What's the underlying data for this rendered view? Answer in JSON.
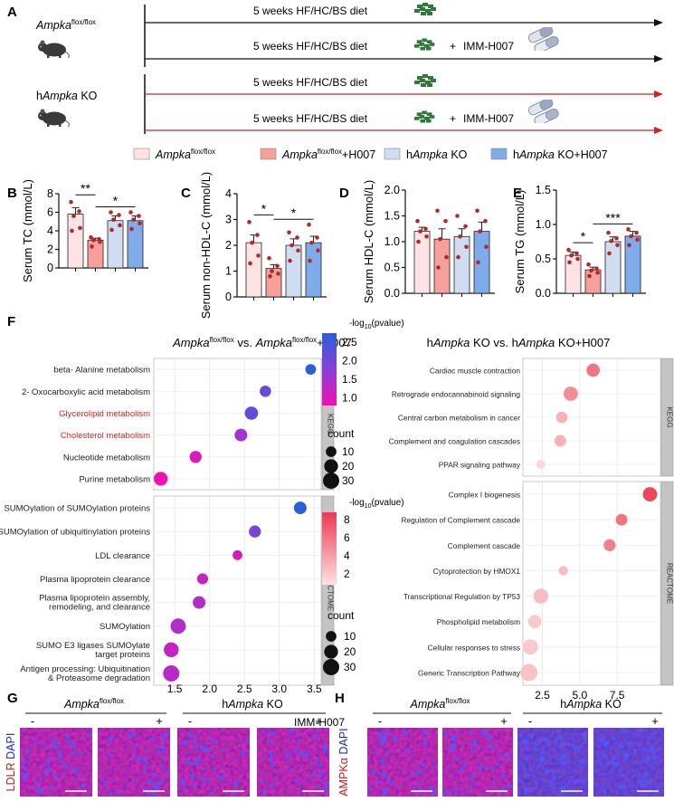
{
  "panels": {
    "A": "A",
    "B": "B",
    "C": "C",
    "D": "D",
    "E": "E",
    "F": "F",
    "G": "G",
    "H": "H"
  },
  "panelA": {
    "group1_italic": "Ampka",
    "group1_sup": "flox/flox",
    "group2_prefix": "h",
    "group2_italic": "Ampka",
    "group2_suffix": " KO",
    "diet_label": "5 weeks HF/HC/BS diet",
    "drug_plus": "+",
    "drug_label": "IMM-H007",
    "arrow_color_control": "#111111",
    "arrow_color_ko": "#d62020"
  },
  "legend": [
    {
      "italic": "Ampka",
      "sup": "flox/flox",
      "tail": "",
      "prefix": "",
      "color": "#fde3e3"
    },
    {
      "italic": "Ampka",
      "sup": "flox/flox",
      "tail": "+H007",
      "prefix": "",
      "color": "#f7a09b"
    },
    {
      "italic": "Ampka",
      "sup": "",
      "tail": " KO",
      "prefix": "h",
      "color": "#cfdcf2"
    },
    {
      "italic": "Ampka",
      "sup": "",
      "tail": " KO+H007",
      "prefix": "h",
      "color": "#7fabea"
    }
  ],
  "chart_data": [
    {
      "id": "B",
      "type": "bar",
      "ylabel": "Serum TC (mmol/L)",
      "ylim": [
        0,
        8
      ],
      "yticks": [
        "0",
        "2",
        "4",
        "6",
        "8"
      ],
      "categories": [
        "Ampka flox/flox",
        "Ampka flox/flox+H007",
        "hAmpka KO",
        "hAmpka KO+H007"
      ],
      "values": [
        5.8,
        3.0,
        5.1,
        5.1
      ],
      "errors": [
        0.7,
        0.2,
        0.5,
        0.5
      ],
      "points": [
        [
          7.1,
          6.1,
          5.6,
          4.3,
          4.0
        ],
        [
          3.3,
          3.1,
          3.0,
          2.8,
          2.3
        ],
        [
          6.0,
          5.7,
          5.2,
          4.6,
          4.1
        ],
        [
          6.0,
          5.6,
          5.2,
          4.8,
          4.2
        ]
      ],
      "significance": [
        {
          "from": 0,
          "to": 1,
          "label": "**"
        },
        {
          "from": 1,
          "to": 3,
          "label": "*"
        }
      ]
    },
    {
      "id": "C",
      "type": "bar",
      "ylabel": "Serum non-HDL-C (mmol/L)",
      "ylim": [
        0,
        4
      ],
      "yticks": [
        "0",
        "1",
        "2",
        "3",
        "4"
      ],
      "categories": [
        "Ampka flox/flox",
        "Ampka flox/flox+H007",
        "hAmpka KO",
        "hAmpka KO+H007"
      ],
      "values": [
        2.1,
        1.1,
        2.0,
        2.1
      ],
      "errors": [
        0.3,
        0.15,
        0.25,
        0.25
      ],
      "points": [
        [
          2.9,
          2.4,
          2.1,
          1.6,
          1.3
        ],
        [
          1.5,
          1.2,
          1.0,
          0.9,
          0.8
        ],
        [
          2.5,
          2.3,
          2.0,
          1.8,
          1.4
        ],
        [
          2.8,
          2.3,
          2.1,
          1.8,
          1.4
        ]
      ],
      "significance": [
        {
          "from": 0,
          "to": 1,
          "label": "*"
        },
        {
          "from": 1,
          "to": 3,
          "label": "*"
        }
      ]
    },
    {
      "id": "D",
      "type": "bar",
      "ylabel": "Serum HDL-C (mmol/L)",
      "ylim": [
        0,
        2
      ],
      "yticks": [
        "0.0",
        "0.5",
        "1.0",
        "1.5",
        "2.0"
      ],
      "categories": [
        "Ampka flox/flox",
        "Ampka flox/flox+H007",
        "hAmpka KO",
        "hAmpka KO+H007"
      ],
      "values": [
        1.2,
        1.05,
        1.1,
        1.2
      ],
      "errors": [
        0.08,
        0.2,
        0.15,
        0.18
      ],
      "points": [
        [
          1.4,
          1.25,
          1.2,
          1.1,
          1.0
        ],
        [
          1.6,
          1.4,
          1.05,
          0.7,
          0.5
        ],
        [
          1.5,
          1.3,
          1.1,
          0.9,
          0.7
        ],
        [
          1.6,
          1.4,
          1.2,
          0.9,
          0.6
        ]
      ],
      "significance": []
    },
    {
      "id": "E",
      "type": "bar",
      "ylabel": "Serum TG (mmol/L)",
      "ylim": [
        0,
        1.5
      ],
      "yticks": [
        "0.0",
        "0.5",
        "1.0",
        "1.5"
      ],
      "categories": [
        "Ampka flox/flox",
        "Ampka flox/flox+H007",
        "hAmpka KO",
        "hAmpka KO+H007"
      ],
      "values": [
        0.55,
        0.34,
        0.75,
        0.83
      ],
      "errors": [
        0.05,
        0.04,
        0.07,
        0.07
      ],
      "points": [
        [
          0.63,
          0.58,
          0.55,
          0.5,
          0.45
        ],
        [
          0.42,
          0.36,
          0.33,
          0.3,
          0.25
        ],
        [
          0.88,
          0.8,
          0.76,
          0.7,
          0.58
        ],
        [
          0.93,
          0.88,
          0.83,
          0.78,
          0.7
        ]
      ],
      "significance": [
        {
          "from": 0,
          "to": 1,
          "label": "*"
        },
        {
          "from": 1,
          "to": 3,
          "label": "***"
        }
      ]
    },
    {
      "id": "F-left",
      "type": "scatter",
      "title_italic1": "Ampka",
      "title_sup1": "flox/flox",
      "title_mid": " vs. ",
      "title_italic2": "Ampka",
      "title_sup2": "flox/flox",
      "title_tail": "+H007",
      "xlim": [
        1.2,
        3.6
      ],
      "xticks": [
        1.5,
        2.0,
        2.5,
        3.0,
        3.5
      ],
      "xticklabels": [
        "1.5",
        "2.0",
        "2.5",
        "3.0",
        "3.5"
      ],
      "facets": [
        {
          "name": "KEGG",
          "terms": [
            {
              "term": "beta- Alanine metabolism",
              "x": 3.45,
              "count": 10,
              "logp": 2.8,
              "highlight": false
            },
            {
              "term": "2- Oxocarboxylic acid metabolism",
              "x": 2.8,
              "count": 12,
              "logp": 2.2,
              "highlight": false
            },
            {
              "term": "Glycerolipid metabolism",
              "x": 2.6,
              "count": 18,
              "logp": 2.3,
              "highlight": true
            },
            {
              "term": "Cholesterol metabolism",
              "x": 2.45,
              "count": 16,
              "logp": 1.6,
              "highlight": true
            },
            {
              "term": "Nucleotide metabolism",
              "x": 1.8,
              "count": 14,
              "logp": 1.1,
              "highlight": false
            },
            {
              "term": "Purine metabolism",
              "x": 1.3,
              "count": 20,
              "logp": 0.9,
              "highlight": false
            }
          ]
        },
        {
          "name": "REACTOME",
          "terms": [
            {
              "term": "SUMOylation of SUMOylation proteins",
              "x": 3.3,
              "count": 16,
              "logp": 2.8,
              "highlight": false
            },
            {
              "term": "SUMOylation of ubiquitinylation proteins",
              "x": 2.65,
              "count": 14,
              "logp": 2.0,
              "highlight": false
            },
            {
              "term": "LDL clearance",
              "x": 2.4,
              "count": 8,
              "logp": 1.1,
              "highlight": false
            },
            {
              "term": "Plasma lipoprotein clearance",
              "x": 1.9,
              "count": 11,
              "logp": 1.3,
              "highlight": false
            },
            {
              "term": "Plasma lipoprotein assembly, remodeling, and clearance",
              "x": 1.85,
              "count": 16,
              "logp": 1.5,
              "highlight": false
            },
            {
              "term": "SUMOylation",
              "x": 1.55,
              "count": 26,
              "logp": 1.5,
              "highlight": false
            },
            {
              "term": "SUMO E3 ligases SUMOylate target proteins",
              "x": 1.45,
              "count": 24,
              "logp": 1.3,
              "highlight": false
            },
            {
              "term": "Antigen processing: Ubiquitination & Proteasome degradation",
              "x": 1.45,
              "count": 30,
              "logp": 1.4,
              "highlight": false
            }
          ]
        }
      ],
      "colorbar_title": "-log10(pvalue)",
      "colorbar_ticks": [
        "2.5",
        "2.0",
        "1.5",
        "1.0"
      ],
      "size_title": "count",
      "size_ticks": [
        "10",
        "20",
        "30"
      ]
    },
    {
      "id": "F-right",
      "type": "scatter",
      "title_prefix": "h",
      "title_italic1": "Ampka",
      "title_mid": " KO vs. h",
      "title_italic2": "Ampka",
      "title_tail": " KO+H007",
      "xlim": [
        1.2,
        10.4
      ],
      "xticks": [
        2.5,
        5.0,
        7.5
      ],
      "xticklabels": [
        "2.5",
        "5.0",
        "7.5"
      ],
      "facets": [
        {
          "name": "KEGG",
          "terms": [
            {
              "term": "Cardiac muscle contraction",
              "x": 5.9,
              "count": 18,
              "logp": 6.0
            },
            {
              "term": "Retrograde endocannabinoid signaling",
              "x": 4.4,
              "count": 22,
              "logp": 5.0
            },
            {
              "term": "Central carbon metabolism in cancer",
              "x": 3.8,
              "count": 12,
              "logp": 3.5
            },
            {
              "term": "Complement and coagulation cascades",
              "x": 3.7,
              "count": 13,
              "logp": 3.5
            },
            {
              "term": "PPAR signaling pathway",
              "x": 2.4,
              "count": 6,
              "logp": 2.0
            }
          ]
        },
        {
          "name": "REACTOME",
          "terms": [
            {
              "term": "Complex I biogenesis",
              "x": 9.7,
              "count": 22,
              "logp": 8.0
            },
            {
              "term": "Regulation of Complement cascade",
              "x": 7.8,
              "count": 13,
              "logp": 6.0
            },
            {
              "term": "Complement cascade",
              "x": 7.0,
              "count": 14,
              "logp": 5.5
            },
            {
              "term": "Cytoprotection by HMOX1",
              "x": 3.9,
              "count": 7,
              "logp": 3.0
            },
            {
              "term": "Transcriptional Regulation by TP53",
              "x": 2.4,
              "count": 24,
              "logp": 3.0
            },
            {
              "term": "Phospholipid metabolism",
              "x": 2.0,
              "count": 18,
              "logp": 2.5
            },
            {
              "term": "Cellular responses to stress",
              "x": 1.7,
              "count": 26,
              "logp": 2.5
            },
            {
              "term": "Generic Transcription Pathway",
              "x": 1.6,
              "count": 34,
              "logp": 2.8
            }
          ]
        }
      ],
      "colorbar_title": "-log10(pvalue)",
      "colorbar_ticks": [
        "8",
        "6",
        "4",
        "2"
      ],
      "size_title": "count",
      "size_ticks": [
        "10",
        "20",
        "30"
      ]
    }
  ],
  "panelG": {
    "stain_red": "LDLR",
    "stain_blue": "DAPI",
    "group1_italic": "Ampka",
    "group1_sup": "flox/flox",
    "group2_prefix": "h",
    "group2_italic": "Ampka",
    "group2_suffix": " KO",
    "minus": "-",
    "plus": "+",
    "drug": "IMM-H007"
  },
  "panelH": {
    "stain_red": "AMPKα",
    "stain_blue": "DAPI",
    "group1_italic": "Ampka",
    "group1_sup": "flox/flox",
    "group2_prefix": "h",
    "group2_italic": "Ampka",
    "group2_suffix": " KO",
    "minus": "-",
    "plus": "+"
  }
}
